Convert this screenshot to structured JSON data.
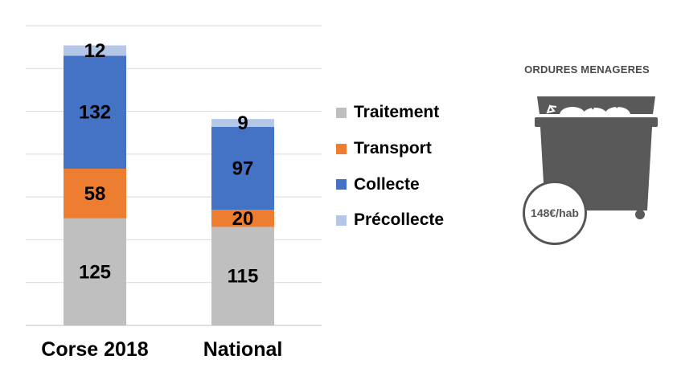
{
  "chart_data": {
    "type": "bar",
    "stacked": true,
    "categories": [
      "Corse 2018",
      "National"
    ],
    "series": [
      {
        "name": "Traitement",
        "color": "#bfbfbf",
        "values": [
          125,
          115
        ]
      },
      {
        "name": "Transport",
        "color": "#ed7d31",
        "values": [
          58,
          20
        ]
      },
      {
        "name": "Collecte",
        "color": "#4472c4",
        "values": [
          132,
          97
        ]
      },
      {
        "name": "Précollecte",
        "color": "#b4c7e7",
        "values": [
          12,
          9
        ]
      }
    ],
    "ylim": [
      0,
      350
    ],
    "grid": true,
    "legend_position": "right",
    "title": "",
    "xlabel": "",
    "ylabel": ""
  },
  "infographic": {
    "title": "ORDURES MENAGERES",
    "icon": "trash-bin-icon",
    "price": "148€/hab",
    "color": "#595959"
  }
}
